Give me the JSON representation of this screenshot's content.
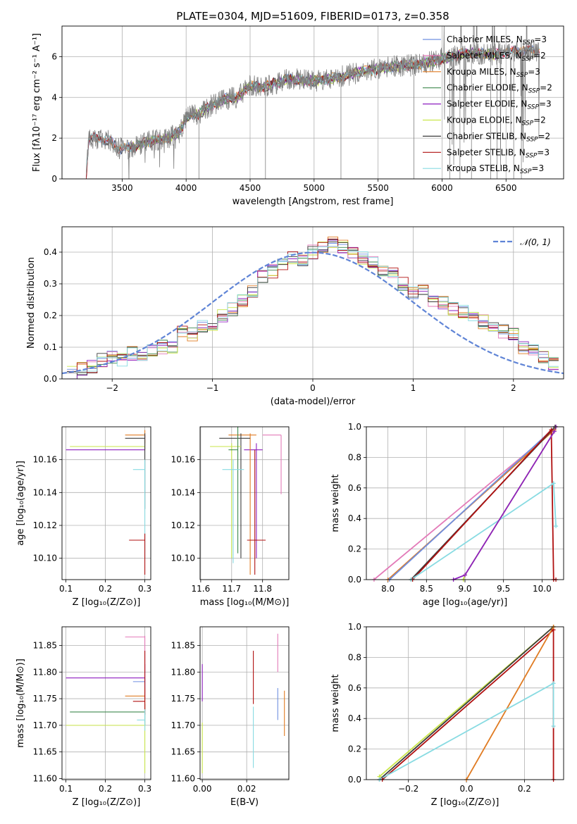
{
  "colors": {
    "chabrier_miles": "#6f8fe0",
    "salpeter_miles": "#e37ab8",
    "kroupa_miles": "#e07b22",
    "chabrier_elodie": "#3f8a4f",
    "salpeter_elodie": "#8e1fbf",
    "kroupa_elodie": "#c9e64a",
    "chabrier_stelib": "#3c3c3c",
    "salpeter_stelib": "#b01010",
    "kroupa_stelib": "#88dbe2",
    "data": "#808080",
    "gaussian": "#5f84d6"
  },
  "chart_data": [
    {
      "type": "line",
      "id": "spectrum",
      "title": "PLATE=0304, MJD=51609, FIBERID=0173, z=0.358",
      "xlabel": "wavelength [Angstrom, rest frame]",
      "ylabel": "Flux [fλ10⁻¹⁷ erg cm⁻² s⁻¹ A⁻¹]",
      "xlim": [
        3030,
        6950
      ],
      "ylim": [
        0,
        7.5
      ],
      "xticks": [
        "3500",
        "4000",
        "4500",
        "5000",
        "5500",
        "6000",
        "6500"
      ],
      "yticks": [
        "0",
        "2",
        "4",
        "6"
      ],
      "continuum": {
        "x": [
          3220,
          3240,
          3300,
          3400,
          3480,
          3550,
          3650,
          3750,
          3850,
          3950,
          4000,
          4100,
          4200,
          4300,
          4400,
          4500,
          4600,
          4800,
          5000,
          5200,
          5400,
          5600,
          5800,
          6000,
          6200,
          6400,
          6600,
          6750
        ],
        "y": [
          0.2,
          2.0,
          2.0,
          1.85,
          1.5,
          1.5,
          1.7,
          1.9,
          2.0,
          2.3,
          3.0,
          3.2,
          3.6,
          3.9,
          4.0,
          4.6,
          4.5,
          4.9,
          4.8,
          5.0,
          5.3,
          5.5,
          5.6,
          5.9,
          6.2,
          6.1,
          6.3,
          6.3
        ]
      },
      "legend": [
        {
          "label": "Chabrier MILES, N",
          "sub": "SSP",
          "n": "=3",
          "color_key": "chabrier_miles"
        },
        {
          "label": "Salpeter MILES, N",
          "sub": "SSP",
          "n": "=2",
          "color_key": "salpeter_miles"
        },
        {
          "label": "Kroupa MILES, N",
          "sub": "SSP",
          "n": "=3",
          "color_key": "kroupa_miles"
        },
        {
          "label": "Chabrier ELODIE, N",
          "sub": "SSP",
          "n": "=2",
          "color_key": "chabrier_elodie"
        },
        {
          "label": "Salpeter ELODIE, N",
          "sub": "SSP",
          "n": "=3",
          "color_key": "salpeter_elodie"
        },
        {
          "label": "Kroupa ELODIE, N",
          "sub": "SSP",
          "n": "=2",
          "color_key": "kroupa_elodie"
        },
        {
          "label": "Chabrier STELIB, N",
          "sub": "SSP",
          "n": "=2",
          "color_key": "chabrier_stelib"
        },
        {
          "label": "Salpeter STELIB, N",
          "sub": "SSP",
          "n": "=3",
          "color_key": "salpeter_stelib"
        },
        {
          "label": "Kroupa STELIB, N",
          "sub": "SSP",
          "n": "=3",
          "color_key": "kroupa_stelib"
        }
      ]
    },
    {
      "type": "line",
      "id": "residuals",
      "xlabel": "(data-model)/error",
      "ylabel": "Normed distribution",
      "xlim": [
        -2.5,
        2.5
      ],
      "ylim": [
        0,
        0.48
      ],
      "xticks": [
        "−2",
        "−1",
        "0",
        "1",
        "2"
      ],
      "yticks": [
        "0.0",
        "0.1",
        "0.2",
        "0.3",
        "0.4"
      ],
      "gaussian_label": "𝒩(0, 1)",
      "hist_centers": [
        -2.4,
        -2.3,
        -2.2,
        -2.1,
        -2.0,
        -1.9,
        -1.8,
        -1.7,
        -1.6,
        -1.5,
        -1.4,
        -1.3,
        -1.2,
        -1.1,
        -1.0,
        -0.9,
        -0.8,
        -0.7,
        -0.6,
        -0.5,
        -0.4,
        -0.3,
        -0.2,
        -0.1,
        0.0,
        0.1,
        0.2,
        0.3,
        0.4,
        0.5,
        0.6,
        0.7,
        0.8,
        0.9,
        1.0,
        1.1,
        1.2,
        1.3,
        1.4,
        1.5,
        1.6,
        1.7,
        1.8,
        1.9,
        2.0,
        2.1,
        2.2,
        2.3,
        2.4
      ],
      "hist_values": [
        0.02,
        0.03,
        0.04,
        0.06,
        0.07,
        0.06,
        0.08,
        0.07,
        0.09,
        0.1,
        0.1,
        0.15,
        0.14,
        0.17,
        0.16,
        0.2,
        0.22,
        0.25,
        0.28,
        0.32,
        0.34,
        0.36,
        0.38,
        0.37,
        0.4,
        0.42,
        0.43,
        0.42,
        0.4,
        0.38,
        0.37,
        0.34,
        0.33,
        0.3,
        0.27,
        0.28,
        0.25,
        0.24,
        0.22,
        0.21,
        0.2,
        0.18,
        0.17,
        0.15,
        0.14,
        0.1,
        0.09,
        0.07,
        0.05
      ]
    },
    {
      "type": "scatter",
      "id": "age-vs-Z",
      "xlabel": "Z [log₁₀(Z/Z⊙)]",
      "ylabel": "age  [log₁₀(age/yr)]",
      "xlim": [
        0.09,
        0.315
      ],
      "ylim": [
        10.087,
        10.18
      ],
      "xticks": [
        {
          "v": 0.1,
          "t": "0.1"
        },
        {
          "v": 0.2,
          "t": "0.2"
        },
        {
          "v": 0.3,
          "t": "0.3"
        }
      ],
      "yticks": [
        {
          "v": 10.1,
          "t": "10.10"
        },
        {
          "v": 10.12,
          "t": "10.12"
        },
        {
          "v": 10.14,
          "t": "10.14"
        },
        {
          "v": 10.16,
          "t": "10.16"
        }
      ],
      "points": [
        {
          "x": 0.3,
          "y": 10.166,
          "xlo": 0.1,
          "xhi": 0.3,
          "ylo": 10.166,
          "yhi": 10.175,
          "c": "salpeter_elodie"
        },
        {
          "x": 0.3,
          "y": 10.168,
          "xlo": 0.11,
          "xhi": 0.3,
          "ylo": 10.166,
          "yhi": 10.172,
          "c": "kroupa_elodie"
        },
        {
          "x": 0.3,
          "y": 10.175,
          "xlo": 0.25,
          "xhi": 0.3,
          "ylo": 10.17,
          "yhi": 10.178,
          "c": "kroupa_miles"
        },
        {
          "x": 0.3,
          "y": 10.173,
          "xlo": 0.25,
          "xhi": 0.3,
          "ylo": 10.13,
          "yhi": 10.176,
          "c": "chabrier_stelib"
        },
        {
          "x": 0.3,
          "y": 10.154,
          "xlo": 0.27,
          "xhi": 0.3,
          "ylo": 10.1,
          "yhi": 10.16,
          "c": "kroupa_stelib"
        },
        {
          "x": 0.3,
          "y": 10.111,
          "xlo": 0.26,
          "xhi": 0.3,
          "ylo": 10.09,
          "yhi": 10.115,
          "c": "salpeter_stelib"
        }
      ]
    },
    {
      "type": "scatter",
      "id": "age-vs-mass",
      "xlabel": "mass [log₁₀(M/M⊙)]",
      "ylabel": "",
      "xlim": [
        11.598,
        11.885
      ],
      "ylim": [
        10.087,
        10.18
      ],
      "xticks": [
        {
          "v": 11.6,
          "t": "11.6"
        },
        {
          "v": 11.7,
          "t": "11.7"
        },
        {
          "v": 11.8,
          "t": "11.8"
        }
      ],
      "yticks": [
        {
          "v": 10.1,
          "t": "10.10"
        },
        {
          "v": 10.12,
          "t": "10.12"
        },
        {
          "v": 10.14,
          "t": "10.14"
        },
        {
          "v": 10.16,
          "t": "10.16"
        }
      ],
      "points": [
        {
          "x": 11.86,
          "y": 10.175,
          "xlo": 11.8,
          "xhi": 11.86,
          "ylo": 10.139,
          "yhi": 10.175,
          "c": "salpeter_miles"
        },
        {
          "x": 11.78,
          "y": 10.166,
          "xlo": 11.74,
          "xhi": 11.8,
          "ylo": 10.1,
          "yhi": 10.17,
          "c": "salpeter_elodie"
        },
        {
          "x": 11.76,
          "y": 10.175,
          "xlo": 11.69,
          "xhi": 11.78,
          "ylo": 10.09,
          "yhi": 10.176,
          "c": "kroupa_miles"
        },
        {
          "x": 11.73,
          "y": 10.173,
          "xlo": 11.66,
          "xhi": 11.76,
          "ylo": 10.1,
          "yhi": 10.176,
          "c": "chabrier_stelib"
        },
        {
          "x": 11.7,
          "y": 10.168,
          "xlo": 11.63,
          "xhi": 11.73,
          "ylo": 10.1,
          "yhi": 10.17,
          "c": "kroupa_elodie"
        },
        {
          "x": 11.72,
          "y": 10.166,
          "xlo": 11.69,
          "xhi": 11.72,
          "ylo": 10.103,
          "yhi": 11.169,
          "c": "chabrier_elodie"
        },
        {
          "x": 11.705,
          "y": 10.154,
          "xlo": 11.67,
          "xhi": 11.74,
          "ylo": 10.097,
          "yhi": 10.16,
          "c": "kroupa_stelib"
        },
        {
          "x": 11.775,
          "y": 10.111,
          "xlo": 11.75,
          "xhi": 11.81,
          "ylo": 10.09,
          "yhi": 10.166,
          "c": "salpeter_stelib"
        }
      ]
    },
    {
      "type": "line",
      "id": "massweight-vs-age",
      "xlabel": "age  [log₁₀(age/yr)]",
      "ylabel": "mass weight",
      "xlim": [
        7.72,
        10.28
      ],
      "ylim": [
        0,
        1.0
      ],
      "xticks": [
        {
          "v": 8.0,
          "t": "8.0"
        },
        {
          "v": 8.5,
          "t": "8.5"
        },
        {
          "v": 9.0,
          "t": "9.0"
        },
        {
          "v": 9.5,
          "t": "9.5"
        },
        {
          "v": 10.0,
          "t": "10.0"
        }
      ],
      "yticks": [
        {
          "v": 0.0,
          "t": "0.0"
        },
        {
          "v": 0.2,
          "t": "0.2"
        },
        {
          "v": 0.4,
          "t": "0.4"
        },
        {
          "v": 0.6,
          "t": "0.6"
        },
        {
          "v": 0.8,
          "t": "0.8"
        },
        {
          "v": 1.0,
          "t": "1.0"
        }
      ],
      "series": [
        {
          "c": "salpeter_miles",
          "x": [
            7.82,
            10.16,
            10.17
          ],
          "y": [
            0.0,
            0.98,
            1.0
          ]
        },
        {
          "c": "kroupa_miles",
          "x": [
            8.0,
            10.16,
            10.17
          ],
          "y": [
            0.0,
            0.98,
            1.0
          ]
        },
        {
          "c": "chabrier_miles",
          "x": [
            8.02,
            10.17
          ],
          "y": [
            0.0,
            1.0
          ]
        },
        {
          "c": "chabrier_stelib",
          "x": [
            8.3,
            10.17
          ],
          "y": [
            0.0,
            1.0
          ]
        },
        {
          "c": "salpeter_stelib",
          "x": [
            8.32,
            10.12,
            10.15,
            10.18
          ],
          "y": [
            0.0,
            0.98,
            0.0,
            0.0
          ]
        },
        {
          "c": "kroupa_stelib",
          "x": [
            8.3,
            10.15,
            10.18
          ],
          "y": [
            0.0,
            0.63,
            0.35
          ]
        },
        {
          "c": "kroupa_elodie",
          "x": [
            8.98,
            9.0,
            10.16,
            10.18
          ],
          "y": [
            0.0,
            0.03,
            0.97,
            1.0
          ]
        },
        {
          "c": "salpeter_elodie",
          "x": [
            8.85,
            9.0,
            10.16,
            10.18
          ],
          "y": [
            0.0,
            0.03,
            0.97,
            1.0
          ]
        }
      ]
    },
    {
      "type": "scatter",
      "id": "mass-vs-Z",
      "xlabel": "Z [log₁₀(Z/Z⊙)]",
      "ylabel": "mass [log₁₀(M/M⊙)]",
      "xlim": [
        0.09,
        0.315
      ],
      "ylim": [
        11.598,
        11.885
      ],
      "xticks": [
        {
          "v": 0.1,
          "t": "0.1"
        },
        {
          "v": 0.2,
          "t": "0.2"
        },
        {
          "v": 0.3,
          "t": "0.3"
        }
      ],
      "yticks": [
        {
          "v": 11.6,
          "t": "11.60"
        },
        {
          "v": 11.65,
          "t": "11.65"
        },
        {
          "v": 11.7,
          "t": "11.70"
        },
        {
          "v": 11.75,
          "t": "11.75"
        },
        {
          "v": 11.8,
          "t": "11.80"
        },
        {
          "v": 11.85,
          "t": "11.85"
        }
      ],
      "points": [
        {
          "x": 0.3,
          "y": 11.789,
          "xlo": 0.1,
          "xhi": 0.3,
          "ylo": 11.75,
          "yhi": 11.815,
          "c": "salpeter_elodie"
        },
        {
          "x": 0.3,
          "y": 11.725,
          "xlo": 0.11,
          "xhi": 0.3,
          "ylo": 11.7,
          "yhi": 11.74,
          "c": "chabrier_elodie"
        },
        {
          "x": 0.3,
          "y": 11.7,
          "xlo": 0.1,
          "xhi": 0.3,
          "ylo": 11.61,
          "yhi": 11.705,
          "c": "kroupa_elodie"
        },
        {
          "x": 0.3,
          "y": 11.866,
          "xlo": 0.25,
          "xhi": 0.3,
          "ylo": 11.8,
          "yhi": 11.868,
          "c": "salpeter_miles"
        },
        {
          "x": 0.3,
          "y": 11.755,
          "xlo": 0.25,
          "xhi": 0.3,
          "ylo": 11.73,
          "yhi": 11.77,
          "c": "kroupa_miles"
        },
        {
          "x": 0.3,
          "y": 11.782,
          "xlo": 0.27,
          "xhi": 0.3,
          "ylo": 11.77,
          "yhi": 11.79,
          "c": "chabrier_miles"
        },
        {
          "x": 0.3,
          "y": 11.745,
          "xlo": 0.27,
          "xhi": 0.3,
          "ylo": 11.72,
          "yhi": 11.84,
          "c": "salpeter_stelib"
        },
        {
          "x": 0.3,
          "y": 11.71,
          "xlo": 0.28,
          "xhi": 0.3,
          "ylo": 11.69,
          "yhi": 11.73,
          "c": "kroupa_stelib"
        }
      ]
    },
    {
      "type": "scatter",
      "id": "mass-vs-EBV",
      "xlabel": "E(B-V)",
      "ylabel": "",
      "xlim": [
        -0.001,
        0.039
      ],
      "ylim": [
        11.598,
        11.885
      ],
      "xticks": [
        {
          "v": 0.0,
          "t": "0.00"
        },
        {
          "v": 0.02,
          "t": "0.02"
        }
      ],
      "yticks": [
        {
          "v": 11.6,
          "t": "11.60"
        },
        {
          "v": 11.65,
          "t": "11.65"
        },
        {
          "v": 11.7,
          "t": "11.70"
        },
        {
          "v": 11.75,
          "t": "11.75"
        },
        {
          "v": 11.8,
          "t": "11.80"
        },
        {
          "v": 11.85,
          "t": "11.85"
        }
      ],
      "points": [
        {
          "x": 0.0,
          "y": 11.78,
          "xlo": 0.0,
          "xhi": 0.0,
          "ylo": 11.745,
          "yhi": 11.815,
          "c": "salpeter_elodie"
        },
        {
          "x": 0.0,
          "y": 11.67,
          "xlo": 0.0,
          "xhi": 0.0,
          "ylo": 11.61,
          "yhi": 11.705,
          "c": "kroupa_elodie"
        },
        {
          "x": 0.023,
          "y": 11.79,
          "xlo": 0.023,
          "xhi": 0.023,
          "ylo": 11.74,
          "yhi": 11.84,
          "c": "salpeter_stelib"
        },
        {
          "x": 0.023,
          "y": 11.69,
          "xlo": 0.023,
          "xhi": 0.023,
          "ylo": 11.62,
          "yhi": 11.735,
          "c": "kroupa_stelib"
        },
        {
          "x": 0.034,
          "y": 11.84,
          "xlo": 0.034,
          "xhi": 0.034,
          "ylo": 11.8,
          "yhi": 11.872,
          "c": "salpeter_miles"
        },
        {
          "x": 0.034,
          "y": 11.73,
          "xlo": 0.034,
          "xhi": 0.034,
          "ylo": 11.71,
          "yhi": 11.77,
          "c": "chabrier_miles"
        },
        {
          "x": 0.037,
          "y": 11.72,
          "xlo": 0.037,
          "xhi": 0.037,
          "ylo": 11.68,
          "yhi": 11.765,
          "c": "kroupa_miles"
        }
      ]
    },
    {
      "type": "line",
      "id": "massweight-vs-Z",
      "xlabel": "Z [log₁₀(Z/Z⊙)]",
      "ylabel": "mass weight",
      "xlim": [
        -0.345,
        0.335
      ],
      "ylim": [
        0,
        1.0
      ],
      "xticks": [
        {
          "v": -0.2,
          "t": "−0.2"
        },
        {
          "v": 0.0,
          "t": "0.0"
        },
        {
          "v": 0.2,
          "t": "0.2"
        }
      ],
      "yticks": [
        {
          "v": 0.0,
          "t": "0.0"
        },
        {
          "v": 0.2,
          "t": "0.2"
        },
        {
          "v": 0.4,
          "t": "0.4"
        },
        {
          "v": 0.6,
          "t": "0.6"
        },
        {
          "v": 0.8,
          "t": "0.8"
        },
        {
          "v": 1.0,
          "t": "1.0"
        }
      ],
      "series": [
        {
          "c": "kroupa_elodie",
          "x": [
            -0.3,
            0.3
          ],
          "y": [
            0.02,
            1.0
          ]
        },
        {
          "c": "chabrier_stelib",
          "x": [
            -0.3,
            0.3
          ],
          "y": [
            0.0,
            1.0
          ]
        },
        {
          "c": "salpeter_stelib",
          "x": [
            -0.29,
            0.3,
            0.3
          ],
          "y": [
            0.0,
            0.98,
            0.0
          ]
        },
        {
          "c": "kroupa_miles",
          "x": [
            0.0,
            0.3
          ],
          "y": [
            0.0,
            1.0
          ]
        },
        {
          "c": "kroupa_stelib",
          "x": [
            -0.3,
            0.3,
            0.3
          ],
          "y": [
            0.0,
            0.63,
            0.35
          ]
        }
      ]
    }
  ]
}
